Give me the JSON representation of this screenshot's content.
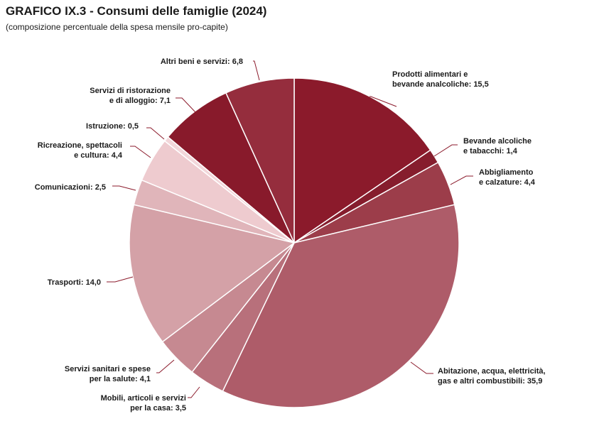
{
  "header": {
    "title": "GRAFICO IX.3 - Consumi delle famiglie (2024)",
    "subtitle": "(composizione percentuale della spesa mensile pro-capite)"
  },
  "chart_data": {
    "type": "pie",
    "title": "GRAFICO IX.3 - Consumi delle famiglie (2024)",
    "subtitle": "(composizione percentuale della spesa mensile pro-capite)",
    "slices": [
      {
        "label": "Prodotti alimentari e bevande analcoliche",
        "value": 15.5,
        "display": "15,5",
        "color": "#8b1a2b"
      },
      {
        "label": "Bevande alcoliche e tabacchi",
        "value": 1.4,
        "display": "1,4",
        "color": "#861d2d"
      },
      {
        "label": "Abbigliamento e calzature",
        "value": 4.4,
        "display": "4,4",
        "color": "#9c3d4a"
      },
      {
        "label": "Abitazione, acqua, elettricità, gas e altri combustibili",
        "value": 35.9,
        "display": "35,9",
        "color": "#ae5c69"
      },
      {
        "label": "Mobili, articoli e servizi per la casa",
        "value": 3.5,
        "display": "3,5",
        "color": "#b8707b"
      },
      {
        "label": "Servizi sanitari e spese per la salute",
        "value": 4.1,
        "display": "4,1",
        "color": "#c68991"
      },
      {
        "label": "Trasporti",
        "value": 14.0,
        "display": "14,0",
        "color": "#d4a1a7"
      },
      {
        "label": "Comunicazioni",
        "value": 2.5,
        "display": "2,5",
        "color": "#e0b5ba"
      },
      {
        "label": "Ricreazione, spettacoli e cultura",
        "value": 4.4,
        "display": "4,4",
        "color": "#eecbcf"
      },
      {
        "label": "Istruzione",
        "value": 0.5,
        "display": "0,5",
        "color": "#f2d7da"
      },
      {
        "label": "Servizi di ristorazione e di alloggio",
        "value": 7.1,
        "display": "7,1",
        "color": "#881a2b"
      },
      {
        "label": "Altri beni e servizi",
        "value": 6.8,
        "display": "6,8",
        "color": "#952d3d"
      }
    ]
  }
}
